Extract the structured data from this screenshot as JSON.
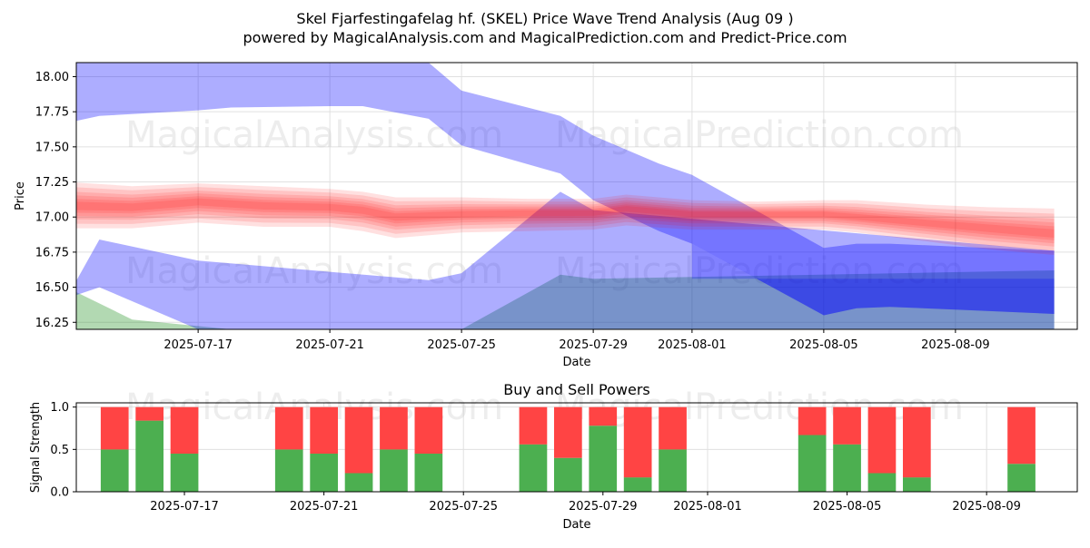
{
  "title_line1": "Skel Fjarfestingafelag hf. (SKEL) Price Wave Trend Analysis (Aug 09 )",
  "title_line2": "powered by MagicalAnalysis.com and MagicalPrediction.com and Predict-Price.com",
  "watermarks": [
    "MagicalAnalysis.com",
    "MagicalPrediction.com"
  ],
  "colors": {
    "blue_band": "#0000ff",
    "red_band": "#ff0000",
    "green_band": "#008000",
    "buy": "#4caf50",
    "sell": "#ff4444",
    "grid": "#e0e0e0"
  },
  "chart_data": [
    {
      "type": "area",
      "title": "",
      "xlabel": "Date",
      "ylabel": "Price",
      "ylim": [
        16.2,
        18.1
      ],
      "xlim": [
        "2025-07-13",
        "2025-08-12"
      ],
      "yticks": [
        "16.25",
        "16.50",
        "16.75",
        "17.00",
        "17.25",
        "17.50",
        "17.75",
        "18.00"
      ],
      "xticks": [
        "2025-07-17",
        "2025-07-21",
        "2025-07-25",
        "2025-07-29",
        "2025-08-01",
        "2025-08-05",
        "2025-08-09"
      ],
      "grid": true,
      "series": [
        {
          "kind": "blue-upper-band",
          "dates": [
            "2025-07-13",
            "2025-07-14",
            "2025-07-17",
            "2025-07-18",
            "2025-07-21",
            "2025-07-22",
            "2025-07-24",
            "2025-07-25",
            "2025-07-28",
            "2025-07-29",
            "2025-07-31",
            "2025-08-01",
            "2025-08-05",
            "2025-08-06",
            "2025-08-07",
            "2025-08-09",
            "2025-08-12"
          ],
          "upper": [
            18.1,
            18.1,
            18.1,
            18.1,
            18.1,
            18.1,
            18.1,
            17.9,
            17.72,
            17.58,
            17.38,
            17.3,
            16.78,
            16.81,
            16.81,
            16.79,
            16.76
          ],
          "lower": [
            17.67,
            17.72,
            17.76,
            17.78,
            17.79,
            17.79,
            17.7,
            17.51,
            17.31,
            17.12,
            16.9,
            16.81,
            16.3,
            16.35,
            16.36,
            16.34,
            16.31
          ]
        },
        {
          "kind": "blue-lower-band",
          "dates": [
            "2025-07-13",
            "2025-07-14",
            "2025-07-17",
            "2025-07-21",
            "2025-07-24",
            "2025-07-25",
            "2025-07-28",
            "2025-07-29",
            "2025-08-12"
          ],
          "upper": [
            16.42,
            16.84,
            16.69,
            16.61,
            16.55,
            16.6,
            17.18,
            17.05,
            16.76
          ],
          "lower": [
            16.42,
            16.5,
            16.2,
            16.2,
            16.2,
            16.2,
            16.2,
            16.2,
            16.2
          ]
        },
        {
          "kind": "green-band",
          "dates": [
            "2025-07-13",
            "2025-07-15",
            "2025-07-18",
            "2025-07-21",
            "2025-07-25",
            "2025-07-28",
            "2025-07-29",
            "2025-08-12"
          ],
          "upper": [
            16.5,
            16.27,
            16.2,
            16.2,
            16.2,
            16.59,
            16.56,
            16.62
          ],
          "lower": [
            16.2,
            16.2,
            16.2,
            16.2,
            16.2,
            16.2,
            16.2,
            16.2
          ]
        },
        {
          "kind": "red-band",
          "dates": [
            "2025-07-13",
            "2025-07-15",
            "2025-07-17",
            "2025-07-19",
            "2025-07-21",
            "2025-07-22",
            "2025-07-23",
            "2025-07-25",
            "2025-07-27",
            "2025-07-29",
            "2025-07-30",
            "2025-08-01",
            "2025-08-03",
            "2025-08-05",
            "2025-08-06",
            "2025-08-08",
            "2025-08-10",
            "2025-08-12"
          ],
          "upper": [
            17.25,
            17.22,
            17.24,
            17.22,
            17.2,
            17.18,
            17.14,
            17.14,
            17.13,
            17.13,
            17.16,
            17.12,
            17.11,
            17.12,
            17.12,
            17.09,
            17.07,
            17.06
          ],
          "lower": [
            16.92,
            16.92,
            16.96,
            16.93,
            16.93,
            16.9,
            16.85,
            16.89,
            16.9,
            16.91,
            16.94,
            16.91,
            16.91,
            16.91,
            16.89,
            16.83,
            16.77,
            16.73
          ],
          "center": [
            17.08,
            17.07,
            17.11,
            17.08,
            17.07,
            17.05,
            17.0,
            17.02,
            17.03,
            17.03,
            17.06,
            17.02,
            17.02,
            17.02,
            17.0,
            16.96,
            16.92,
            16.88
          ]
        }
      ]
    },
    {
      "type": "bar",
      "title": "Buy and Sell Powers",
      "xlabel": "Date",
      "ylabel": "Signal Strength",
      "ylim": [
        0,
        1.05
      ],
      "yticks": [
        "0.0",
        "0.5",
        "1.0"
      ],
      "xticks": [
        "2025-07-17",
        "2025-07-21",
        "2025-07-25",
        "2025-07-29",
        "2025-08-01",
        "2025-08-05",
        "2025-08-09"
      ],
      "grid": true,
      "categories": [
        "2025-07-15",
        "2025-07-16",
        "2025-07-17",
        "2025-07-20",
        "2025-07-21",
        "2025-07-22",
        "2025-07-23",
        "2025-07-24",
        "2025-07-27",
        "2025-07-28",
        "2025-07-29",
        "2025-07-30",
        "2025-07-31",
        "2025-08-04",
        "2025-08-05",
        "2025-08-06",
        "2025-08-07",
        "2025-08-10"
      ],
      "series": [
        {
          "name": "buy",
          "values": [
            0.5,
            0.84,
            0.45,
            0.5,
            0.45,
            0.22,
            0.5,
            0.45,
            0.56,
            0.4,
            0.78,
            0.17,
            0.5,
            0.67,
            0.56,
            0.22,
            0.17,
            0.33
          ]
        },
        {
          "name": "sell",
          "values": [
            0.5,
            0.16,
            0.55,
            0.5,
            0.55,
            0.78,
            0.5,
            0.55,
            0.44,
            0.6,
            0.22,
            0.83,
            0.5,
            0.33,
            0.44,
            0.78,
            0.83,
            0.67
          ]
        }
      ]
    }
  ]
}
